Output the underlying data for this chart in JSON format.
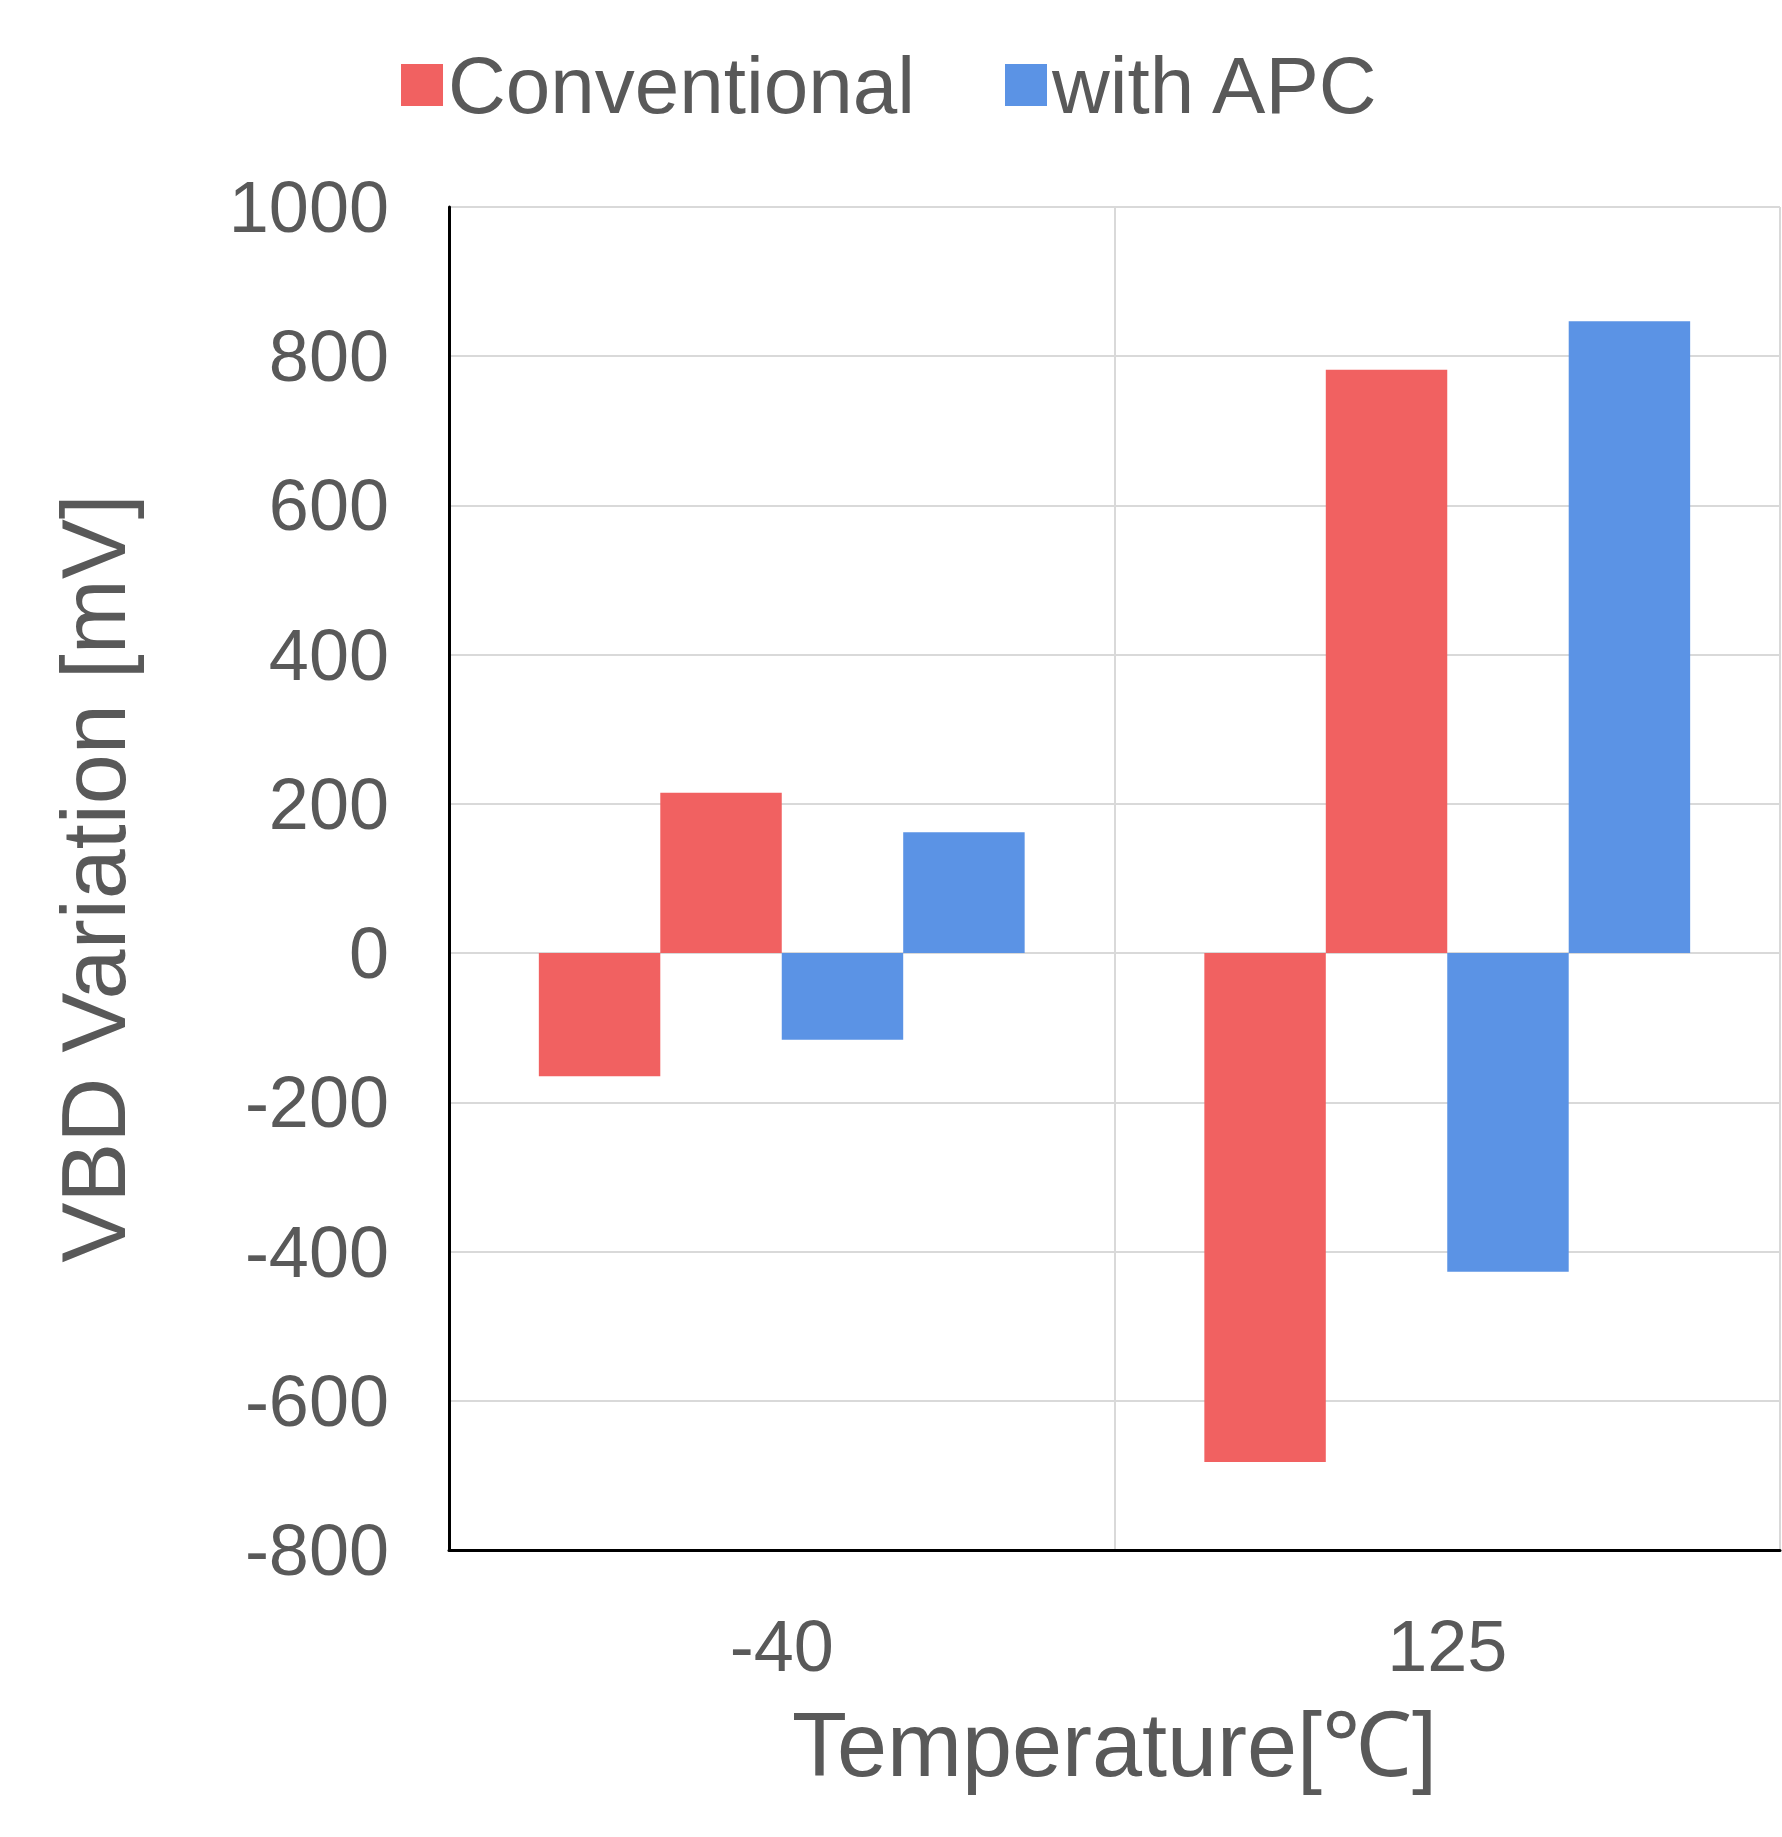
{
  "chart_data": {
    "type": "bar",
    "xlabel": "Temperature[℃]",
    "ylabel": "VBD Variation [mV]",
    "categories": [
      "-40",
      "125"
    ],
    "series": [
      {
        "name": "Conventional",
        "color": "#f16161",
        "values": [
          -165,
          -682
        ]
      },
      {
        "color": "#f16161",
        "values": [
          215,
          782
        ]
      },
      {
        "name": "with APC",
        "color": "#5b93e5",
        "values": [
          -116,
          -427
        ]
      },
      {
        "color": "#5b93e5",
        "values": [
          162,
          847
        ]
      }
    ],
    "ylim": [
      -800,
      1000
    ],
    "yticks": [
      -800,
      -600,
      -400,
      -200,
      0,
      200,
      400,
      600,
      800,
      1000
    ],
    "grid": true,
    "legend": "top"
  }
}
